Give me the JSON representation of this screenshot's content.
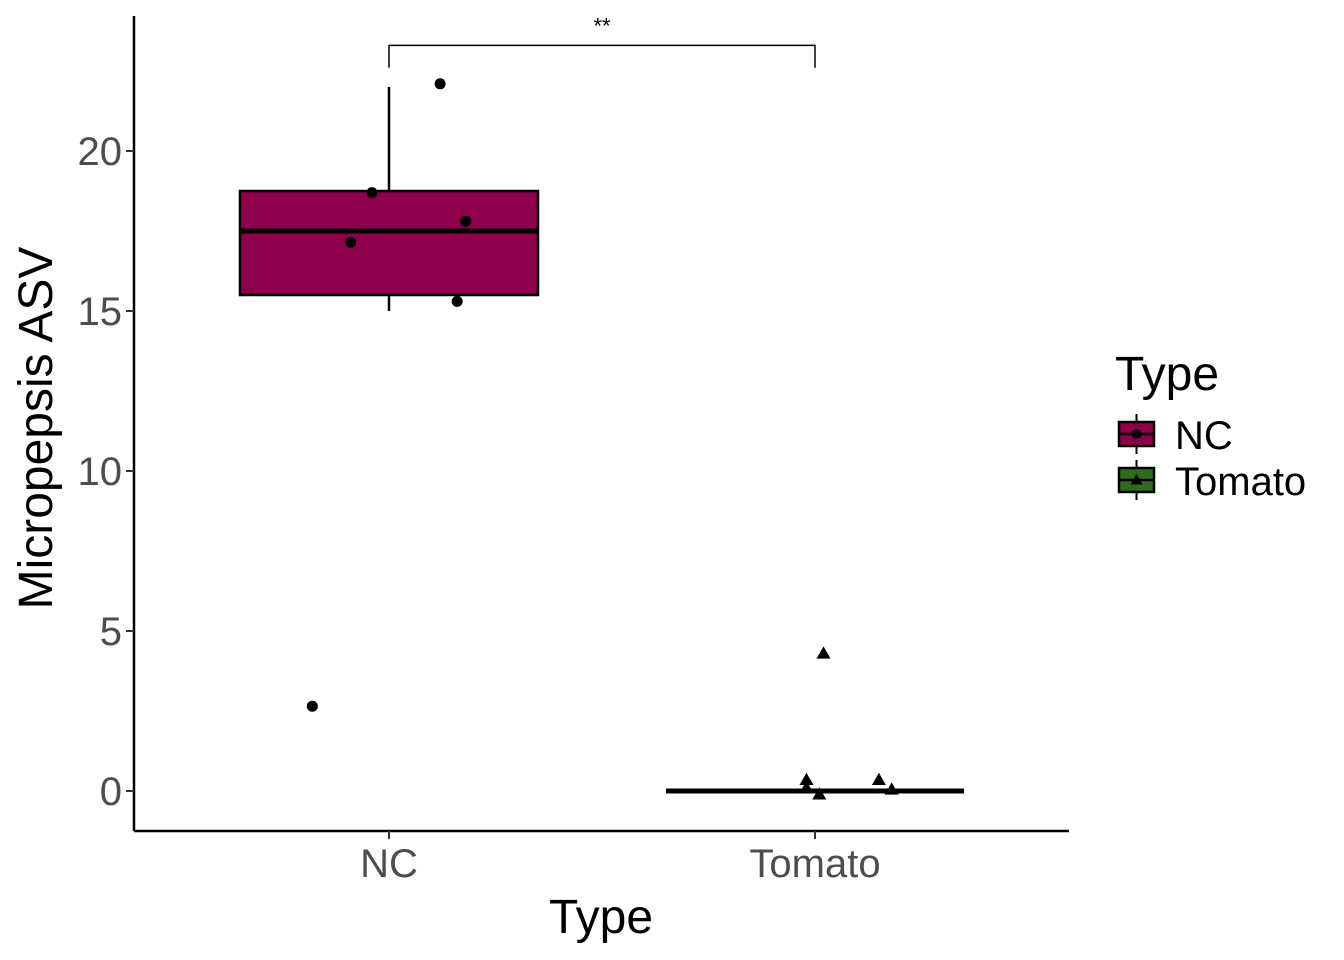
{
  "chart_data": {
    "type": "box",
    "xlabel": "Type",
    "ylabel": "Micropepsis ASV",
    "categories": [
      "NC",
      "Tomato"
    ],
    "ylim": [
      -1.25,
      24
    ],
    "yticks": [
      0,
      5,
      10,
      15,
      20
    ],
    "grid": false,
    "legend": {
      "title": "Type",
      "position": "right",
      "entries": [
        {
          "label": "NC",
          "color": "#8E004B",
          "shape": "circle"
        },
        {
          "label": "Tomato",
          "color": "#2E6B1F",
          "shape": "triangle"
        }
      ]
    },
    "boxes": [
      {
        "category": "NC",
        "q1": 15.5,
        "median": 17.5,
        "q3": 18.75,
        "whisker_low": 15.0,
        "whisker_high": 22.0,
        "color": "#8E004B"
      },
      {
        "category": "Tomato",
        "q1": 0,
        "median": 0,
        "q3": 0,
        "whisker_low": 0,
        "whisker_high": 0,
        "color": "#2E6B1F"
      }
    ],
    "points": [
      {
        "category": "NC",
        "jitter": 0.12,
        "y": 22.1,
        "shape": "circle"
      },
      {
        "category": "NC",
        "jitter": -0.04,
        "y": 18.7,
        "shape": "circle"
      },
      {
        "category": "NC",
        "jitter": 0.18,
        "y": 17.8,
        "shape": "circle"
      },
      {
        "category": "NC",
        "jitter": -0.09,
        "y": 17.15,
        "shape": "circle"
      },
      {
        "category": "NC",
        "jitter": 0.16,
        "y": 15.3,
        "shape": "circle"
      },
      {
        "category": "NC",
        "jitter": -0.18,
        "y": 2.65,
        "shape": "circle"
      },
      {
        "category": "Tomato",
        "jitter": 0.02,
        "y": 4.3,
        "shape": "triangle"
      },
      {
        "category": "Tomato",
        "jitter": -0.02,
        "y": 0.35,
        "shape": "triangle"
      },
      {
        "category": "Tomato",
        "jitter": 0.15,
        "y": 0.35,
        "shape": "triangle"
      },
      {
        "category": "Tomato",
        "jitter": -0.02,
        "y": 0.1,
        "shape": "triangle"
      },
      {
        "category": "Tomato",
        "jitter": 0.18,
        "y": 0.05,
        "shape": "triangle"
      },
      {
        "category": "Tomato",
        "jitter": 0.01,
        "y": -0.1,
        "shape": "triangle"
      }
    ],
    "significance": {
      "from": "NC",
      "to": "Tomato",
      "label": "**",
      "y": 23.3,
      "tick_bottom": 22.6
    }
  }
}
